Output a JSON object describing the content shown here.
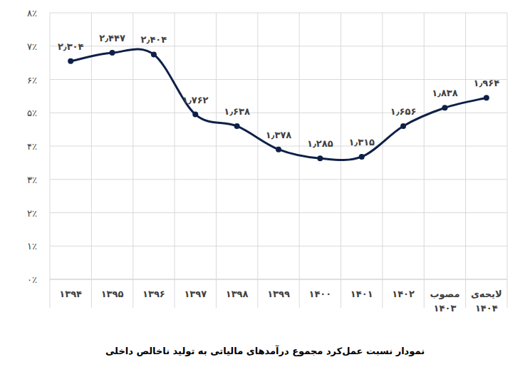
{
  "chart_data": {
    "type": "line",
    "title": "نمودار نسبت عمل‌کرد مجموع درآمدهای مالیاتی به تولید ناخالص داخلی",
    "categories": [
      "۱۳۹۴",
      "۱۳۹۵",
      "۱۳۹۶",
      "۱۳۹۷",
      "۱۳۹۸",
      "۱۳۹۹",
      "۱۴۰۰",
      "۱۴۰۱",
      "۱۴۰۲",
      "مصوب ۱۴۰۳",
      "لایحه‌ی ۱۴۰۴"
    ],
    "values": [
      6.55,
      6.8,
      6.75,
      4.95,
      4.6,
      3.9,
      3.63,
      3.68,
      4.6,
      5.15,
      5.45
    ],
    "annotations": [
      "۲٫۳۰۴",
      "۲٫۴۴۷",
      "۲٫۴۰۴",
      "۱٫۷۶۲",
      "۱٫۶۳۸",
      "۱٫۳۷۸",
      "۱٫۲۸۵",
      "۱٫۳۱۵",
      "۱٫۶۵۶",
      "۱٫۸۳۸",
      "۱٫۹۶۴"
    ],
    "color": "#0e2048",
    "marker": "circle",
    "line_style": "smooth",
    "ylim": [
      0,
      8
    ],
    "yticks": [
      {
        "value": 0,
        "label": "۰٪"
      },
      {
        "value": 1,
        "label": "۱٪"
      },
      {
        "value": 2,
        "label": "۲٪"
      },
      {
        "value": 3,
        "label": "۳٪"
      },
      {
        "value": 4,
        "label": "۴٪"
      },
      {
        "value": 5,
        "label": "۵٪"
      },
      {
        "value": 6,
        "label": "۶٪"
      },
      {
        "value": 7,
        "label": "۷٪"
      },
      {
        "value": 8,
        "label": "۸٪"
      }
    ],
    "grid": true
  }
}
